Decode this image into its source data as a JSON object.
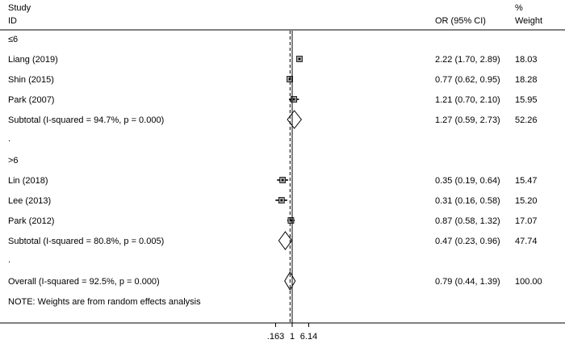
{
  "chart_data": {
    "type": "forest",
    "header": {
      "study_line1": "Study",
      "study_line2": "ID",
      "or_label": "OR (95% CI)",
      "weight_line1": "%",
      "weight_line2": "Weight"
    },
    "x_axis": {
      "scale": "log",
      "range": [
        0.1,
        8
      ],
      "ticks": [
        {
          "value": 0.163,
          "label": ".163"
        },
        {
          "value": 1,
          "label": "1"
        },
        {
          "value": 6.14,
          "label": "6.14"
        }
      ]
    },
    "null_line": 1,
    "overall_line": 0.79,
    "groups": [
      {
        "label": "≤6",
        "studies": [
          {
            "study": "Liang (2019)",
            "or": 2.22,
            "lo": 1.7,
            "hi": 2.89,
            "ci_text": "2.22 (1.70, 2.89)",
            "weight": "18.03"
          },
          {
            "study": "Shin (2015)",
            "or": 0.77,
            "lo": 0.62,
            "hi": 0.95,
            "ci_text": "0.77 (0.62, 0.95)",
            "weight": "18.28"
          },
          {
            "study": "Park (2007)",
            "or": 1.21,
            "lo": 0.7,
            "hi": 2.1,
            "ci_text": "1.21 (0.70, 2.10)",
            "weight": "15.95"
          }
        ],
        "subtotal": {
          "label": "Subtotal  (I-squared = 94.7%, p = 0.000)",
          "or": 1.27,
          "lo": 0.59,
          "hi": 2.73,
          "ci_text": "1.27 (0.59, 2.73)",
          "weight": "52.26"
        }
      },
      {
        "label": ">6",
        "studies": [
          {
            "study": "Lin (2018)",
            "or": 0.35,
            "lo": 0.19,
            "hi": 0.64,
            "ci_text": "0.35 (0.19, 0.64)",
            "weight": "15.47"
          },
          {
            "study": "Lee (2013)",
            "or": 0.31,
            "lo": 0.16,
            "hi": 0.58,
            "ci_text": "0.31 (0.16, 0.58)",
            "weight": "15.20"
          },
          {
            "study": "Park (2012)",
            "or": 0.87,
            "lo": 0.58,
            "hi": 1.32,
            "ci_text": "0.87 (0.58, 1.32)",
            "weight": "17.07"
          }
        ],
        "subtotal": {
          "label": "Subtotal  (I-squared = 80.8%, p = 0.005)",
          "or": 0.47,
          "lo": 0.23,
          "hi": 0.96,
          "ci_text": "0.47 (0.23, 0.96)",
          "weight": "47.74"
        }
      }
    ],
    "separator": ".",
    "overall": {
      "label": "Overall  (I-squared = 92.5%, p = 0.000)",
      "or": 0.79,
      "lo": 0.44,
      "hi": 1.39,
      "ci_text": "0.79 (0.44, 1.39)",
      "weight": "100.00"
    },
    "note": "NOTE: Weights are from random effects analysis"
  }
}
